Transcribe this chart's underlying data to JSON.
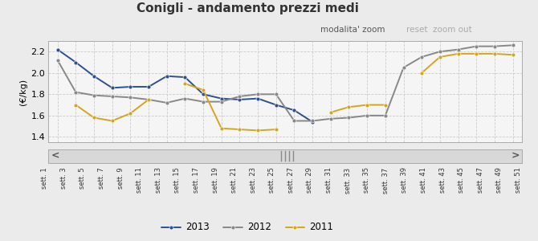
{
  "title": "Conigli - andamento prezzi medi",
  "ylabel": "(€/kg)",
  "background_color": "#ebebeb",
  "plot_bg_color": "#f5f5f5",
  "grid_color": "#cccccc",
  "x_labels": [
    "sett. 1",
    "sett. 3",
    "sett. 5",
    "sett. 7",
    "sett. 9",
    "sett. 11",
    "sett. 13",
    "sett. 15",
    "sett. 17",
    "sett. 19",
    "sett. 21",
    "sett. 23",
    "sett. 25",
    "sett. 27",
    "sett. 29",
    "sett. 31",
    "sett. 33",
    "sett. 35",
    "sett. 37",
    "sett. 39",
    "sett. 41",
    "sett. 43",
    "sett. 45",
    "sett. 47",
    "sett. 49",
    "sett. 51"
  ],
  "series": {
    "2013": {
      "color": "#2e508e",
      "values": [
        2.22,
        2.1,
        1.97,
        1.86,
        1.87,
        1.87,
        1.97,
        1.96,
        1.8,
        1.76,
        1.75,
        1.76,
        1.7,
        1.65,
        1.54,
        null,
        null,
        null,
        null,
        null,
        null,
        null,
        null,
        null,
        null,
        null
      ]
    },
    "2012": {
      "color": "#888888",
      "values": [
        2.12,
        1.82,
        1.79,
        1.78,
        1.77,
        1.75,
        1.72,
        1.76,
        1.73,
        1.73,
        1.78,
        1.8,
        1.8,
        1.55,
        1.55,
        1.57,
        1.58,
        1.6,
        1.6,
        2.05,
        2.15,
        2.2,
        2.22,
        2.25,
        2.25,
        2.26
      ]
    },
    "2011": {
      "color": "#d4a520",
      "values": [
        null,
        1.7,
        1.58,
        1.55,
        1.62,
        1.75,
        null,
        1.9,
        1.84,
        1.48,
        1.47,
        1.46,
        1.47,
        null,
        null,
        1.63,
        1.68,
        1.7,
        1.7,
        null,
        2.0,
        2.15,
        2.18,
        2.18,
        2.18,
        2.17
      ]
    }
  },
  "ylim": [
    1.35,
    2.3
  ],
  "yticks": [
    1.4,
    1.6,
    1.8,
    2.0,
    2.2
  ],
  "subtitle_zoom": "modalita' zoom",
  "subtitle_reset": "reset",
  "subtitle_zoomout": "zoom out"
}
